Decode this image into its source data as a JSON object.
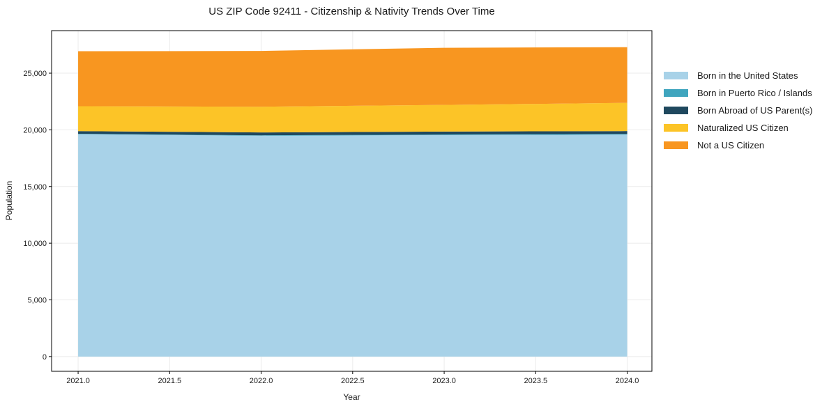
{
  "figure": {
    "title": "US ZIP Code 92411 - Citizenship & Nativity Trends Over Time",
    "xlabel": "Year",
    "ylabel": "Population"
  },
  "colors": {
    "background": "#ffffff",
    "grid": "#ebebeb",
    "frame": "#000000",
    "tick": "#000000",
    "text": "#1a1a1a"
  },
  "legend": {
    "items": [
      {
        "label": "Born in the United States",
        "color": "#A8D2E8"
      },
      {
        "label": "Born in Puerto Rico / Islands",
        "color": "#3FA5BE"
      },
      {
        "label": "Born Abroad of US Parent(s)",
        "color": "#1F485E"
      },
      {
        "label": "Naturalized US Citizen",
        "color": "#FCC427"
      },
      {
        "label": "Not a US Citizen",
        "color": "#F89620"
      }
    ]
  },
  "chart_data": {
    "type": "area",
    "stacked": true,
    "title": "US ZIP Code 92411 - Citizenship & Nativity Trends Over Time",
    "xlabel": "Year",
    "ylabel": "Population",
    "x": [
      2021,
      2022,
      2023,
      2024
    ],
    "series": [
      {
        "name": "Born in the United States",
        "color": "#A8D2E8",
        "values": [
          19615,
          19480,
          19540,
          19580
        ]
      },
      {
        "name": "Born in Puerto Rico / Islands",
        "color": "#3FA5BE",
        "values": [
          40,
          40,
          50,
          60
        ]
      },
      {
        "name": "Born Abroad of US Parent(s)",
        "color": "#1F485E",
        "values": [
          230,
          250,
          260,
          250
        ]
      },
      {
        "name": "Naturalized US Citizen",
        "color": "#FCC427",
        "values": [
          2200,
          2270,
          2350,
          2490
        ]
      },
      {
        "name": "Not a US Citizen",
        "color": "#F89620",
        "values": [
          4850,
          4920,
          5040,
          4910
        ]
      }
    ],
    "totals": [
      26935,
      26960,
      27240,
      27290
    ],
    "xlim": [
      2020.855,
      2024.135
    ],
    "ylim": [
      -1300,
      28750
    ],
    "x_ticks": [
      {
        "v": 2021.0,
        "label": "2021.0"
      },
      {
        "v": 2021.5,
        "label": "2021.5"
      },
      {
        "v": 2022.0,
        "label": "2022.0"
      },
      {
        "v": 2022.5,
        "label": "2022.5"
      },
      {
        "v": 2023.0,
        "label": "2023.0"
      },
      {
        "v": 2023.5,
        "label": "2023.5"
      },
      {
        "v": 2024.0,
        "label": "2024.0"
      }
    ],
    "y_ticks": [
      {
        "v": 0,
        "label": "0"
      },
      {
        "v": 5000,
        "label": "5,000"
      },
      {
        "v": 10000,
        "label": "10,000"
      },
      {
        "v": 15000,
        "label": "15,000"
      },
      {
        "v": 20000,
        "label": "20,000"
      },
      {
        "v": 25000,
        "label": "25,000"
      }
    ],
    "grid": true,
    "legend_position": "right-outside"
  }
}
